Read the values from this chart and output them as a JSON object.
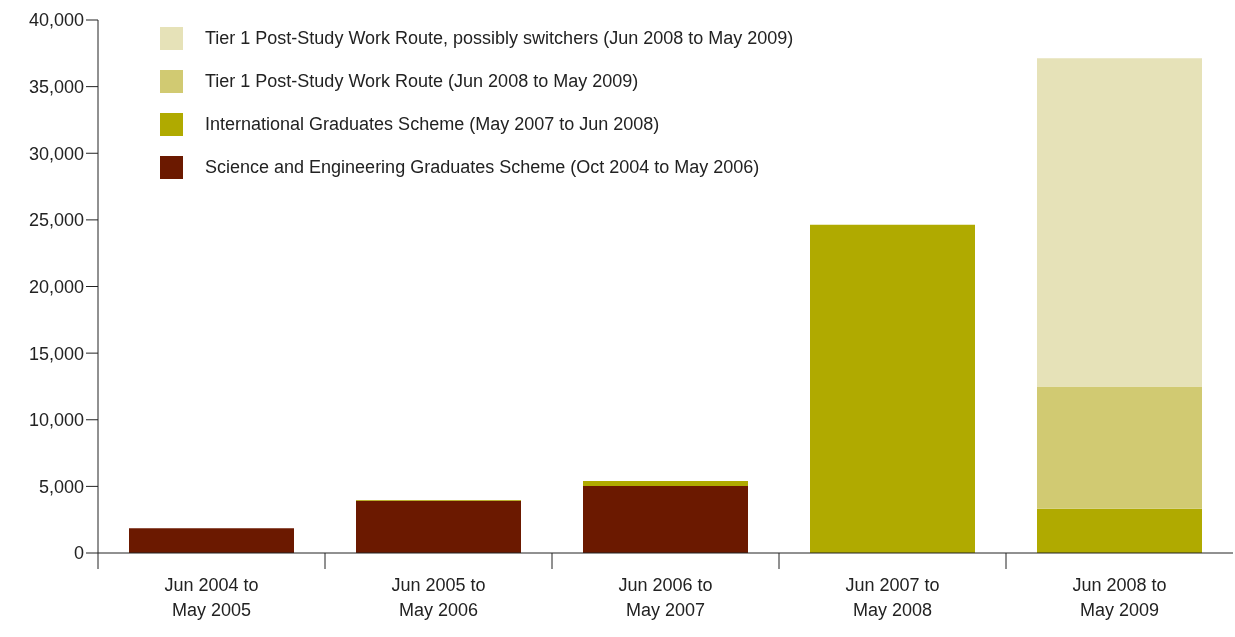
{
  "chart_data": {
    "type": "bar",
    "stacked": true,
    "categories": [
      "Jun 2004 to\nMay 2005",
      "Jun 2005 to\nMay 2006",
      "Jun 2006 to\nMay 2007",
      "Jun 2007 to\nMay 2008",
      "Jun 2008 to\nMay 2009"
    ],
    "series": [
      {
        "name": "Science and Engineering Graduates Scheme (Oct 2004 to May 2006)",
        "color": "#6b1900",
        "values": [
          1850,
          3920,
          5030,
          null,
          null
        ]
      },
      {
        "name": "International Graduates Scheme (May 2007 to Jun 2008)",
        "color": "#b0aa00",
        "values": [
          null,
          60,
          370,
          24630,
          3330
        ]
      },
      {
        "name": "Tier 1 Post-Study Work Route (Jun 2008 to May 2009)",
        "color": "#d1ca72",
        "values": [
          null,
          null,
          null,
          null,
          9170
        ]
      },
      {
        "name": "Tier 1 Post-Study Work Route, possibly switchers (Jun 2008 to May 2009)",
        "color": "#e6e2b8",
        "values": [
          null,
          null,
          null,
          null,
          24630
        ]
      }
    ],
    "ylim": [
      0,
      40000
    ],
    "yticks": [
      0,
      {
        "value": 5000,
        "label": "5,000"
      },
      {
        "value": 10000,
        "label": "10,000"
      },
      {
        "value": 15000,
        "label": "15,000"
      },
      {
        "value": 20000,
        "label": "20,000"
      },
      {
        "value": 25000,
        "label": "25,000"
      },
      {
        "value": 30000,
        "label": "30,000"
      },
      {
        "value": 35000,
        "label": "35,000"
      },
      {
        "value": 40000,
        "label": "40,000"
      }
    ],
    "grid": false,
    "legend": "top left"
  }
}
